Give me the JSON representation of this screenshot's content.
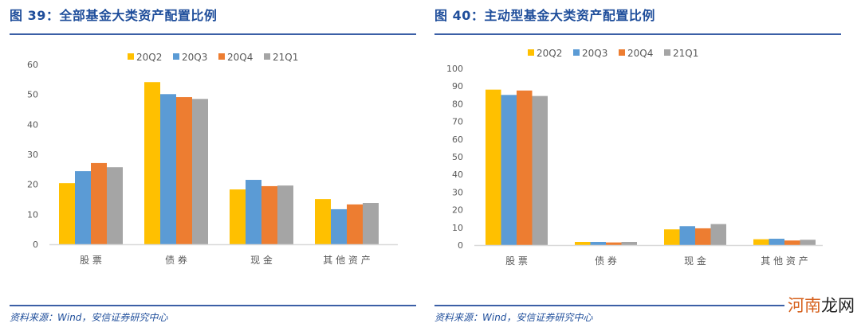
{
  "colors": {
    "20Q2": "#FFC000",
    "20Q3": "#5B9BD5",
    "20Q4": "#ED7D31",
    "21Q1": "#A5A5A5",
    "title": "#1F4E9B",
    "rule": "#3B5FA6",
    "axis": "#D9D9D9",
    "tick_text": "#595959"
  },
  "panels": [
    {
      "title": "图 39：全部基金大类资产配置比例",
      "source": "资料来源：Wind，安信证券研究中心"
    },
    {
      "title": "图 40：主动型基金大类资产配置比例",
      "source": "资料来源：Wind，安信证券研究中心"
    }
  ],
  "watermark": {
    "part1": "河南",
    "part2": "龙网"
  },
  "chart_data": [
    {
      "type": "bar",
      "title": "图 39：全部基金大类资产配置比例",
      "xlabel": "",
      "ylabel": "",
      "categories": [
        "股票",
        "债券",
        "现金",
        "其他资产"
      ],
      "series": [
        {
          "name": "20Q2",
          "values": [
            20.4,
            54.1,
            18.3,
            15.1
          ]
        },
        {
          "name": "20Q3",
          "values": [
            24.4,
            50.1,
            21.5,
            11.7
          ]
        },
        {
          "name": "20Q4",
          "values": [
            27.1,
            49.1,
            19.4,
            13.3
          ]
        },
        {
          "name": "21Q1",
          "values": [
            25.7,
            48.5,
            19.6,
            13.8
          ]
        }
      ],
      "ylim": [
        0,
        60
      ],
      "yticks": [
        0,
        10,
        20,
        30,
        40,
        50,
        60
      ],
      "grid": false,
      "legend_position": "top"
    },
    {
      "type": "bar",
      "title": "图 40：主动型基金大类资产配置比例",
      "xlabel": "",
      "ylabel": "",
      "categories": [
        "股票",
        "债券",
        "现金",
        "其他资产"
      ],
      "series": [
        {
          "name": "20Q2",
          "values": [
            88.0,
            1.8,
            8.9,
            3.3
          ]
        },
        {
          "name": "20Q3",
          "values": [
            85.0,
            1.8,
            10.7,
            3.6
          ]
        },
        {
          "name": "20Q4",
          "values": [
            87.5,
            1.5,
            9.5,
            2.6
          ]
        },
        {
          "name": "21Q1",
          "values": [
            84.4,
            1.8,
            11.9,
            3.0
          ]
        }
      ],
      "ylim": [
        0,
        100
      ],
      "yticks": [
        0,
        10,
        20,
        30,
        40,
        50,
        60,
        70,
        80,
        90,
        100
      ],
      "grid": false,
      "legend_position": "top"
    }
  ]
}
